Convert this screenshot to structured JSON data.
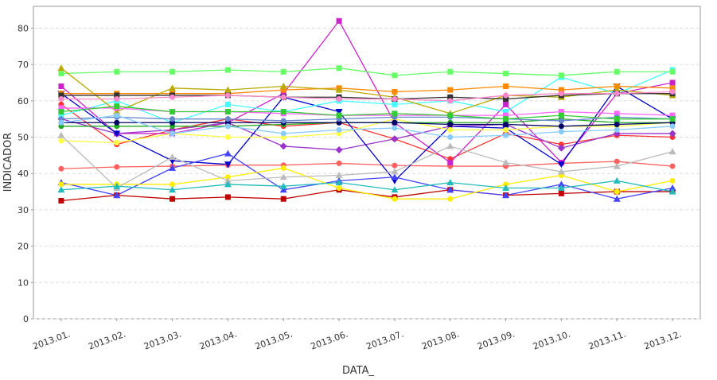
{
  "chart_data": {
    "type": "line",
    "x_label": "DATA_",
    "y_label": "INDICADOR",
    "categories": [
      "2013.01.",
      "2013.02.",
      "2013.03.",
      "2013.04.",
      "2013.05.",
      "2013.06.",
      "2013.07.",
      "2013.08.",
      "2013.09.",
      "2013.10.",
      "2013.11.",
      "2013.12."
    ],
    "ylim": [
      0,
      86
    ],
    "yticks": [
      0,
      10,
      20,
      30,
      40,
      50,
      60,
      70,
      80
    ],
    "grid": true,
    "series": [
      {
        "color": "#c00000",
        "marker": "square",
        "values": [
          32.5,
          34,
          33,
          33.5,
          33,
          35.5,
          33.5,
          35.5,
          34,
          34.5,
          35,
          35
        ]
      },
      {
        "color": "#ff6060",
        "marker": "circle",
        "values": [
          41.3,
          41.8,
          42,
          42.3,
          42.3,
          42.8,
          42.2,
          42,
          42,
          42.8,
          43.3,
          42
        ]
      },
      {
        "color": "#ff3333",
        "marker": "circle",
        "values": [
          59,
          48,
          52,
          55,
          53,
          54,
          49.5,
          44,
          51,
          48,
          50.5,
          50
        ]
      },
      {
        "color": "#cc22cc",
        "marker": "square",
        "values": [
          64,
          51,
          51,
          54,
          62,
          82,
          54,
          43,
          59,
          43,
          62,
          65
        ]
      },
      {
        "color": "#9933cc",
        "marker": "diamond",
        "values": [
          55,
          51,
          52,
          54,
          47.5,
          46.5,
          49.5,
          53,
          53.5,
          47,
          51,
          51
        ]
      },
      {
        "color": "#0000cc",
        "marker": "triangle-down",
        "values": [
          62,
          51,
          43.5,
          42.5,
          61,
          57,
          38,
          53,
          52.5,
          42.5,
          64,
          55
        ]
      },
      {
        "color": "#4444ff",
        "marker": "triangle",
        "values": [
          37.5,
          34,
          41.5,
          45.5,
          35.5,
          38,
          39,
          35.5,
          34,
          37,
          33,
          36
        ]
      },
      {
        "color": "#ffff44",
        "marker": "circle",
        "values": [
          49,
          48.5,
          51,
          50,
          50,
          51,
          55,
          52,
          52,
          53,
          53,
          54
        ]
      },
      {
        "color": "#ffee00",
        "marker": "circle",
        "values": [
          37,
          37,
          37,
          39,
          41.5,
          36,
          33,
          33,
          37,
          39.5,
          35,
          38
        ]
      },
      {
        "color": "#bbbbbb",
        "marker": "triangle",
        "values": [
          50.5,
          36,
          44.5,
          38,
          39,
          39.5,
          40.5,
          47.5,
          43,
          40.5,
          42,
          46
        ]
      },
      {
        "color": "#44ffff",
        "marker": "square",
        "values": [
          56,
          60,
          54,
          59,
          57,
          60,
          59,
          60,
          57,
          66.5,
          62,
          68.5
        ]
      },
      {
        "color": "#22bbbb",
        "marker": "triangle",
        "values": [
          35.5,
          36.5,
          35.5,
          37,
          36.5,
          37.5,
          35.5,
          37.5,
          36,
          36,
          38,
          35
        ]
      },
      {
        "color": "#66ff66",
        "marker": "square",
        "values": [
          67.5,
          68,
          68,
          68.5,
          68,
          69,
          67,
          68,
          67.5,
          67,
          68,
          68
        ]
      },
      {
        "color": "#22aa22",
        "marker": "circle",
        "values": [
          53,
          53,
          53,
          53,
          53.5,
          54,
          54,
          54,
          54,
          55,
          54,
          54
        ]
      },
      {
        "color": "#ff8800",
        "marker": "square",
        "values": [
          62,
          62,
          62,
          62,
          63,
          63.5,
          62.5,
          63,
          64,
          63,
          64,
          63.5
        ]
      },
      {
        "color": "#bbaa00",
        "marker": "triangle",
        "values": [
          69,
          57,
          63.5,
          63,
          64,
          63,
          61,
          56.5,
          61.5,
          61,
          63,
          61.5
        ]
      },
      {
        "color": "#333333",
        "marker": "square",
        "values": [
          61.5,
          61.5,
          61.5,
          61.5,
          61,
          61,
          60.5,
          61,
          60.5,
          61.5,
          62,
          62
        ]
      },
      {
        "color": "#ff66ff",
        "marker": "square",
        "values": [
          58,
          58,
          57,
          57,
          56.5,
          56,
          56,
          56,
          56,
          57,
          56.5,
          56
        ]
      },
      {
        "color": "#ff88cc",
        "marker": "circle",
        "values": [
          60.5,
          60.5,
          61,
          61.5,
          61,
          60.5,
          60.5,
          60,
          61.5,
          62,
          62,
          62.5
        ]
      },
      {
        "color": "#000066",
        "marker": "circle",
        "values": [
          54,
          54,
          54,
          54,
          54,
          54,
          54,
          53.5,
          53.5,
          53,
          53.5,
          54
        ]
      },
      {
        "color": "#6688cc",
        "marker": "circle",
        "values": [
          55,
          55.5,
          55,
          55,
          54.5,
          55,
          55.5,
          55.5,
          55,
          54.5,
          55.5,
          55
        ]
      },
      {
        "color": "#33cc33",
        "marker": "square",
        "values": [
          57,
          58.5,
          57,
          57,
          57,
          56,
          56.5,
          56,
          55,
          56,
          55,
          55
        ]
      },
      {
        "color": "#88ccff",
        "marker": "circle",
        "values": [
          54,
          56,
          51,
          53,
          51,
          52,
          52.5,
          50,
          50.5,
          51.5,
          52,
          53
        ]
      }
    ]
  }
}
